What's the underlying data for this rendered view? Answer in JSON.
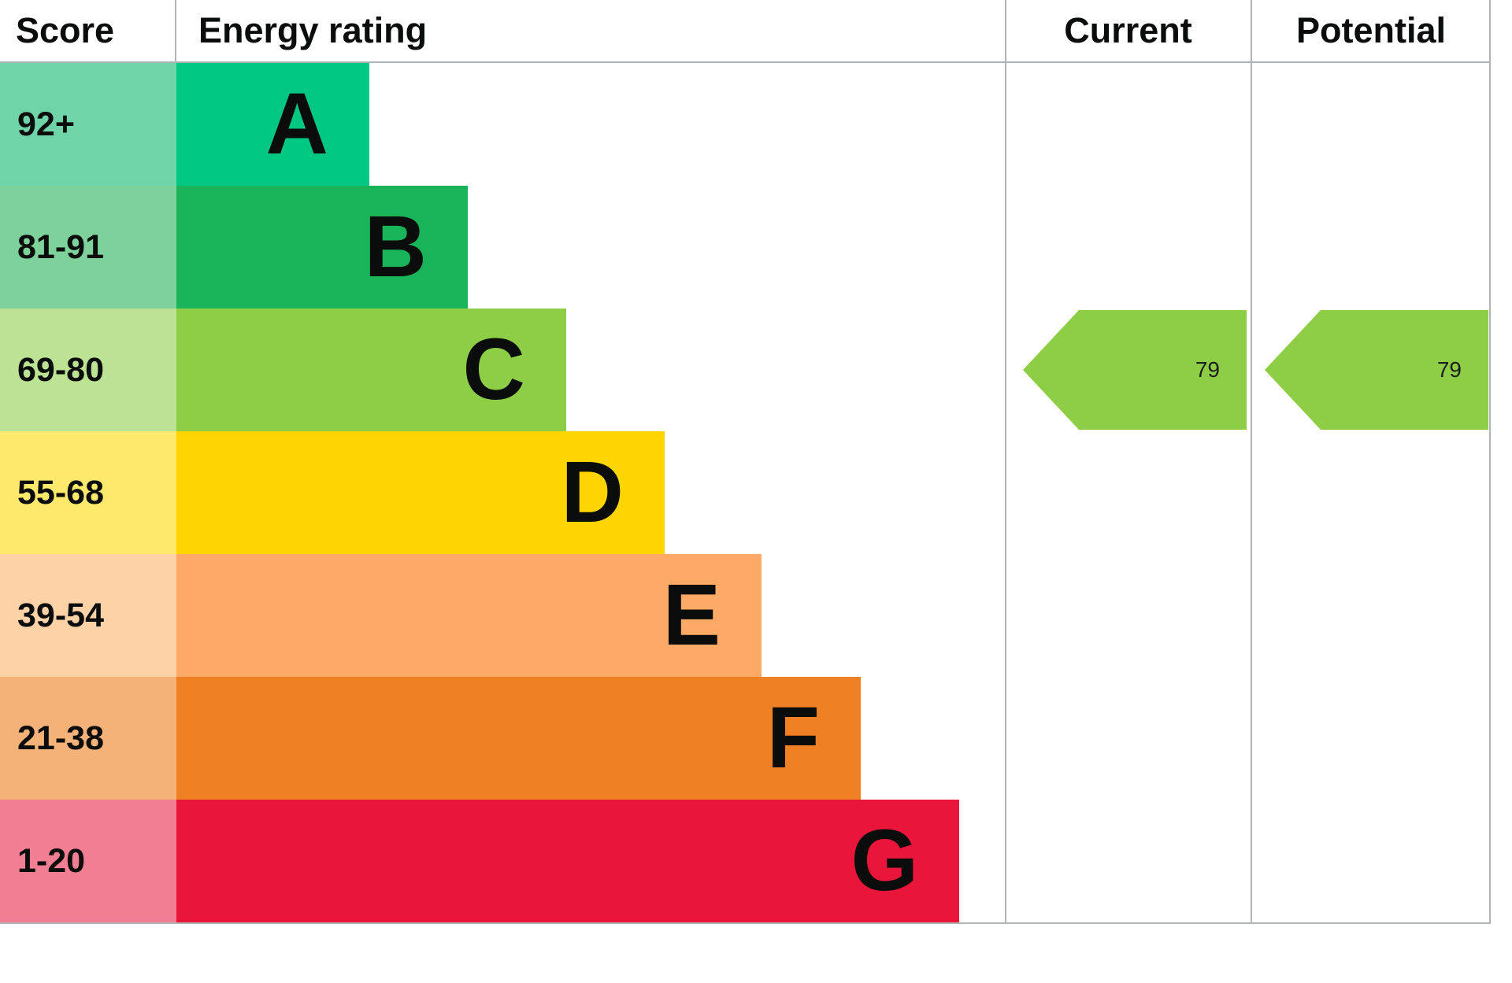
{
  "header": {
    "score": "Score",
    "energy_rating": "Energy rating",
    "current": "Current",
    "potential": "Potential"
  },
  "chart_data": {
    "type": "bar",
    "subtype": "epc-energy-rating",
    "title": "Energy rating",
    "orientation": "horizontal",
    "bands": [
      {
        "letter": "A",
        "score_range": "92+",
        "color": "#00c781",
        "tint": "#6fd5a8",
        "width_pct": 23.3
      },
      {
        "letter": "B",
        "score_range": "81-91",
        "color": "#19b459",
        "tint": "#7cd29a",
        "width_pct": 35.2
      },
      {
        "letter": "C",
        "score_range": "69-80",
        "color": "#8dce46",
        "tint": "#bce293",
        "width_pct": 47.1
      },
      {
        "letter": "D",
        "score_range": "55-68",
        "color": "#ffd500",
        "tint": "#ffe96d",
        "width_pct": 59.0
      },
      {
        "letter": "E",
        "score_range": "39-54",
        "color": "#fcaa65",
        "tint": "#fdd2a6",
        "width_pct": 70.8
      },
      {
        "letter": "F",
        "score_range": "21-38",
        "color": "#ef8023",
        "tint": "#f4b279",
        "width_pct": 82.8
      },
      {
        "letter": "G",
        "score_range": "1-20",
        "color": "#e9153b",
        "tint": "#f27e93",
        "width_pct": 94.7
      }
    ],
    "current": {
      "value": 79,
      "band": "C",
      "band_index": 2,
      "arrow_color": "#8dce46"
    },
    "potential": {
      "value": 79,
      "band": "C",
      "band_index": 2,
      "arrow_color": "#8dce46"
    }
  }
}
